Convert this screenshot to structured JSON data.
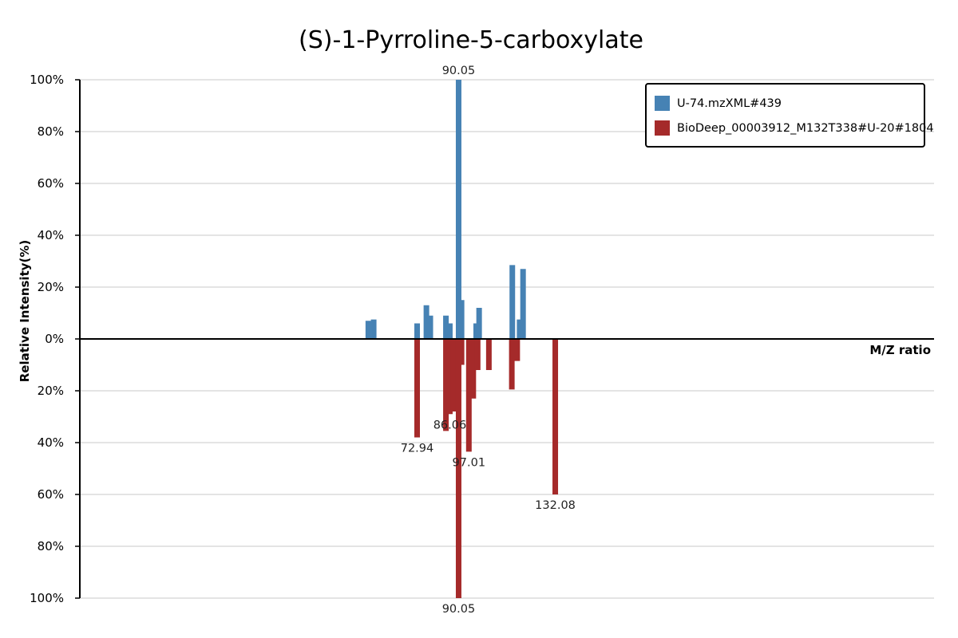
{
  "chart_data": {
    "type": "bar",
    "title": "(S)-1-Pyrroline-5-carboxylate",
    "xlabel": "M/Z ratio",
    "ylabel": "Relative Intensity(%)",
    "ylim": [
      -100,
      100
    ],
    "xlim": [
      0,
      175
    ],
    "y_ticks": [
      "100%",
      "80%",
      "60%",
      "40%",
      "20%",
      "0%",
      "20%",
      "40%",
      "60%",
      "80%",
      "100%"
    ],
    "grid": true,
    "legend_position": "top-right",
    "colors": {
      "query": "#4682b4",
      "reference": "#a52a2a"
    },
    "series": [
      {
        "name": "U-74.mzXML#439",
        "direction": "up",
        "color": "#4682b4",
        "peaks": [
          {
            "mz": 59.1,
            "intensity": 7
          },
          {
            "mz": 60.2,
            "intensity": 7.5
          },
          {
            "mz": 69.1,
            "intensity": 6
          },
          {
            "mz": 71.0,
            "intensity": 13
          },
          {
            "mz": 71.8,
            "intensity": 9
          },
          {
            "mz": 75.0,
            "intensity": 9
          },
          {
            "mz": 75.8,
            "intensity": 6
          },
          {
            "mz": 77.6,
            "intensity": 100,
            "label": "90.05"
          },
          {
            "mz": 78.2,
            "intensity": 15
          },
          {
            "mz": 81.2,
            "intensity": 6
          },
          {
            "mz": 81.8,
            "intensity": 12
          },
          {
            "mz": 88.6,
            "intensity": 28.5
          },
          {
            "mz": 90.1,
            "intensity": 7.5
          },
          {
            "mz": 90.8,
            "intensity": 27
          }
        ]
      },
      {
        "name": "BioDeep_00003912_M132T338#U-20#1804",
        "direction": "down",
        "color": "#a52a2a",
        "peaks": [
          {
            "mz": 69.1,
            "intensity": 38,
            "label": "72.94"
          },
          {
            "mz": 75.0,
            "intensity": 35.5
          },
          {
            "mz": 75.8,
            "intensity": 29,
            "label": "86.06"
          },
          {
            "mz": 76.6,
            "intensity": 28
          },
          {
            "mz": 77.6,
            "intensity": 100,
            "label": "90.05"
          },
          {
            "mz": 78.2,
            "intensity": 10
          },
          {
            "mz": 79.7,
            "intensity": 43.5,
            "label": "97.01"
          },
          {
            "mz": 80.6,
            "intensity": 23
          },
          {
            "mz": 81.5,
            "intensity": 12
          },
          {
            "mz": 83.8,
            "intensity": 12
          },
          {
            "mz": 88.5,
            "intensity": 19.5
          },
          {
            "mz": 89.6,
            "intensity": 8.5
          },
          {
            "mz": 97.4,
            "intensity": 60,
            "label": "132.08"
          }
        ]
      }
    ]
  }
}
